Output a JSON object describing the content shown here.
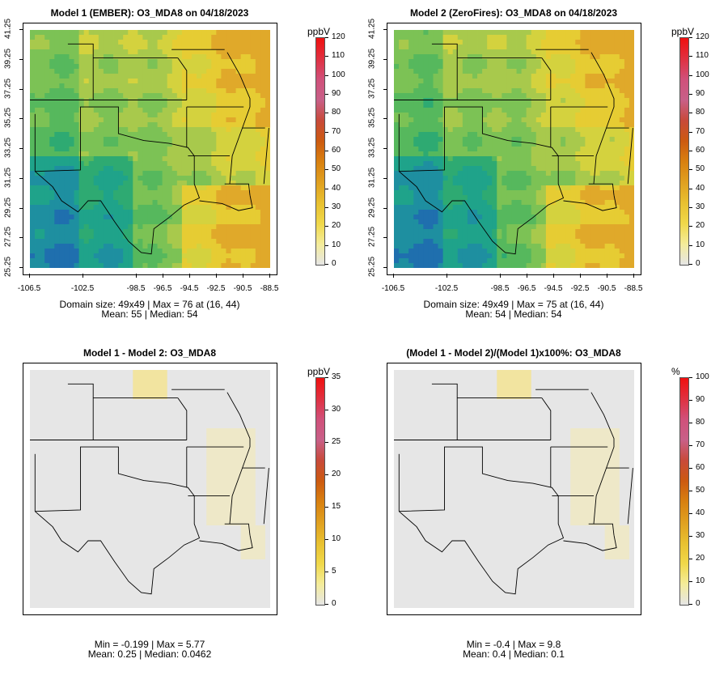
{
  "panels": [
    {
      "title": "Model 1 (EMBER): O3_MDA8 on 04/18/2023",
      "stat_line1": "Domain size: 49x49 | Max = 76 at (16, 44)",
      "stat_line2": "Mean: 55 |  Median: 54",
      "unit": "ppbV",
      "colorbar_ticks": [
        "120",
        "110",
        "100",
        "90",
        "80",
        "70",
        "60",
        "50",
        "40",
        "30",
        "20",
        "10",
        "0"
      ],
      "kind": "ozone",
      "show_axes": true
    },
    {
      "title": "Model 2 (ZeroFires): O3_MDA8 on 04/18/2023",
      "stat_line1": "Domain size: 49x49 | Max = 75 at (16, 44)",
      "stat_line2": "Mean: 54 |  Median: 54",
      "unit": "ppbV",
      "colorbar_ticks": [
        "120",
        "110",
        "100",
        "90",
        "80",
        "70",
        "60",
        "50",
        "40",
        "30",
        "20",
        "10",
        "0"
      ],
      "kind": "ozone",
      "show_axes": true
    },
    {
      "title": "Model 1 - Model 2: O3_MDA8",
      "stat_line1": "Min = -0.199 | Max = 5.77",
      "stat_line2": "Mean: 0.25 |  Median: 0.0462",
      "unit": "ppbV",
      "colorbar_ticks": [
        "35",
        "30",
        "25",
        "20",
        "15",
        "10",
        "5",
        "0"
      ],
      "kind": "diff",
      "show_axes": false
    },
    {
      "title": "(Model 1 - Model 2)/(Model 1)x100%: O3_MDA8",
      "stat_line1": "Min = -0.4 | Max = 9.8",
      "stat_line2": "Mean: 0.4 |  Median: 0.1",
      "unit": "%",
      "colorbar_ticks": [
        "100",
        "90",
        "80",
        "70",
        "60",
        "50",
        "40",
        "30",
        "20",
        "10",
        "0"
      ],
      "kind": "pct",
      "show_axes": false
    }
  ],
  "axes": {
    "y_ticks": [
      "41.25",
      "39.25",
      "37.25",
      "35.25",
      "33.25",
      "31.25",
      "29.25",
      "27.25",
      "25.25"
    ],
    "x_ticks": [
      "-106.5",
      "-102.5",
      "-98.5",
      "-96.5",
      "-94.5",
      "-92.5",
      "-90.5",
      "-88.5"
    ]
  },
  "colors": {
    "colorbar_scale": [
      "#e6e6e6",
      "#f4ec9a",
      "#f0d84a",
      "#e8c030",
      "#e0a020",
      "#d88010",
      "#cc5a10",
      "#c84a3a",
      "#c86088",
      "#d0507a",
      "#e03040",
      "#f01010"
    ],
    "ozone_scale": [
      "#1f6fae",
      "#1e8fa0",
      "#1fa38a",
      "#2eaa72",
      "#56b85d",
      "#7cc255",
      "#a8c94c",
      "#d4d23e",
      "#e6cc33",
      "#e0a92a"
    ],
    "background_field": "#e6e6e6",
    "border_lines": "#000000"
  }
}
